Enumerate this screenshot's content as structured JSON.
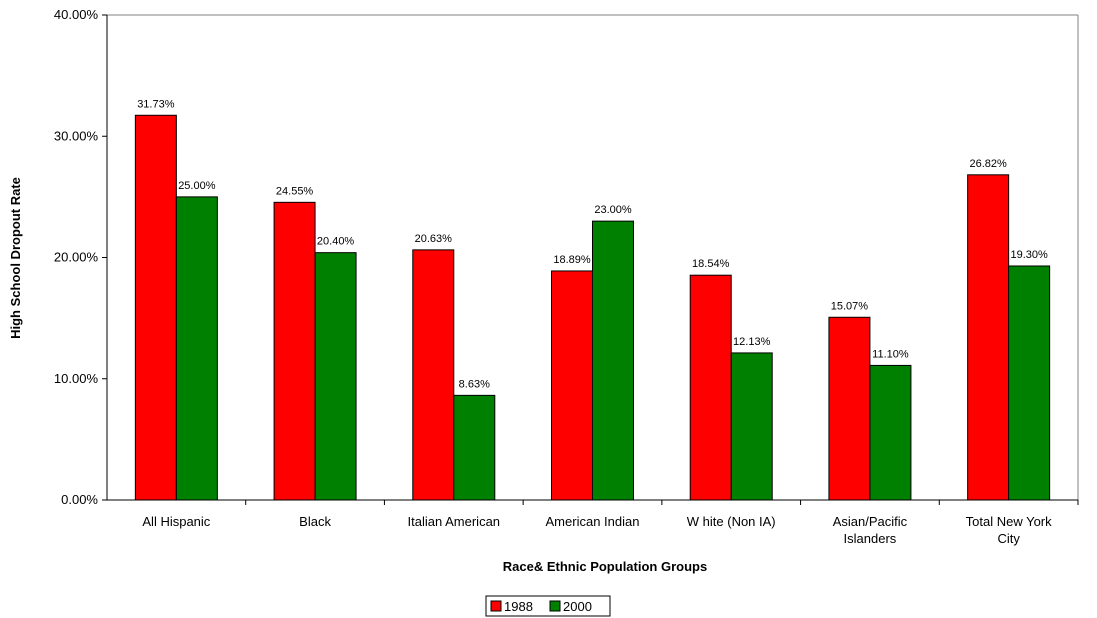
{
  "chart_data": {
    "type": "bar",
    "title": "",
    "xlabel": "Race& Ethnic Population Groups",
    "ylabel": "High School Dropout Rate",
    "ylim": [
      0,
      40
    ],
    "yticks": [
      "0.00%",
      "10.00%",
      "20.00%",
      "30.00%",
      "40.00%"
    ],
    "categories": [
      [
        "All Hispanic"
      ],
      [
        "Black"
      ],
      [
        "Italian American"
      ],
      [
        "American Indian"
      ],
      [
        "W hite (Non IA)"
      ],
      [
        "Asian/Pacific",
        "Islanders"
      ],
      [
        "Total New York",
        "City"
      ]
    ],
    "series": [
      {
        "name": "1988",
        "color": "#ff0000",
        "values": [
          31.73,
          24.55,
          20.63,
          18.89,
          18.54,
          15.07,
          26.82
        ],
        "labels": [
          "31.73%",
          "24.55%",
          "20.63%",
          "18.89%",
          "18.54%",
          "15.07%",
          "26.82%"
        ]
      },
      {
        "name": "2000",
        "color": "#008000",
        "values": [
          25.0,
          20.4,
          8.63,
          23.0,
          12.13,
          11.1,
          19.3
        ],
        "labels": [
          "25.00%",
          "20.40%",
          "8.63%",
          "23.00%",
          "12.13%",
          "11.10%",
          "19.30%"
        ]
      }
    ],
    "legend_position": "bottom-center",
    "grid": false
  }
}
